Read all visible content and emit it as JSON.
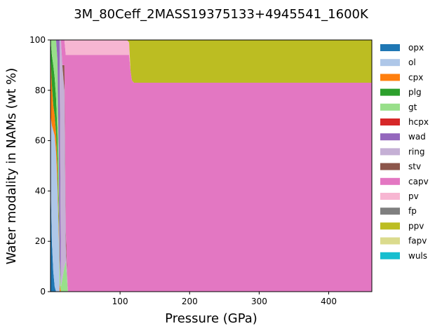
{
  "chart_data": {
    "type": "area",
    "title": "3M_80Ceff_2MASS19375133+4945541_1600K",
    "xlabel": "Pressure (GPa)",
    "ylabel": "Water modality in NAMs (wt %)",
    "xlim": [
      0,
      462
    ],
    "ylim": [
      0,
      100
    ],
    "xticks": [
      100,
      200,
      300,
      400
    ],
    "yticks": [
      0,
      20,
      40,
      60,
      80,
      100
    ],
    "legend_position": "outside-right",
    "x": [
      0,
      2,
      4,
      6,
      8,
      10,
      12,
      13,
      15,
      17,
      20,
      22,
      25,
      110,
      113,
      115,
      117,
      120,
      200,
      300,
      400,
      462
    ],
    "series": [
      {
        "name": "opx",
        "color": "#1f77b4",
        "values": [
          45,
          20,
          8,
          2,
          0,
          0,
          0,
          0,
          0,
          0,
          0,
          0,
          0,
          0,
          0,
          0,
          0,
          0,
          0,
          0,
          0,
          0
        ]
      },
      {
        "name": "ol",
        "color": "#aec7e8",
        "values": [
          25,
          46,
          56,
          60,
          55,
          42,
          20,
          0,
          0,
          0,
          0,
          0,
          0,
          0,
          0,
          0,
          0,
          0,
          0,
          0,
          0,
          0
        ]
      },
      {
        "name": "cpx",
        "color": "#ff7f0e",
        "values": [
          25,
          16,
          10,
          8,
          8,
          8,
          5,
          3,
          0,
          0,
          0,
          0,
          0,
          0,
          0,
          0,
          0,
          0,
          0,
          0,
          0,
          0
        ]
      },
      {
        "name": "plg",
        "color": "#2ca02c",
        "values": [
          5,
          12,
          16,
          15,
          14,
          12,
          6,
          0,
          0,
          0,
          0,
          0,
          0,
          0,
          0,
          0,
          0,
          0,
          0,
          0,
          0,
          0
        ]
      },
      {
        "name": "gt",
        "color": "#98df8a",
        "values": [
          0,
          6,
          10,
          15,
          23,
          30,
          22,
          10,
          2,
          5,
          10,
          12,
          0,
          0,
          0,
          0,
          0,
          0,
          0,
          0,
          0,
          0
        ]
      },
      {
        "name": "hcpx",
        "color": "#d62728",
        "values": [
          0,
          0,
          0,
          0,
          0,
          0,
          0,
          0,
          0,
          0,
          0,
          0,
          0,
          0,
          0,
          0,
          0,
          0,
          0,
          0,
          0,
          0
        ]
      },
      {
        "name": "wad",
        "color": "#9467bd",
        "values": [
          0,
          0,
          0,
          0,
          0,
          8,
          47,
          87,
          0,
          0,
          0,
          0,
          0,
          0,
          0,
          0,
          0,
          0,
          0,
          0,
          0,
          0
        ]
      },
      {
        "name": "ring",
        "color": "#c5b0d5",
        "values": [
          0,
          0,
          0,
          0,
          0,
          0,
          0,
          0,
          98,
          85,
          70,
          6,
          0,
          0,
          0,
          0,
          0,
          0,
          0,
          0,
          0,
          0
        ]
      },
      {
        "name": "stv",
        "color": "#8c564b",
        "values": [
          0,
          0,
          0,
          0,
          0,
          0,
          0,
          0,
          0,
          0,
          10,
          6,
          0,
          0,
          0,
          0,
          0,
          0,
          0,
          0,
          0,
          0
        ]
      },
      {
        "name": "capv",
        "color": "#e377c2",
        "values": [
          0,
          0,
          0,
          0,
          0,
          0,
          0,
          0,
          0,
          10,
          10,
          70,
          94,
          94,
          94,
          88,
          84,
          83,
          83,
          83,
          83,
          83
        ]
      },
      {
        "name": "pv",
        "color": "#f7b6d2",
        "values": [
          0,
          0,
          0,
          0,
          0,
          0,
          0,
          0,
          0,
          0,
          0,
          6,
          6,
          6,
          5,
          0,
          0,
          0,
          0,
          0,
          0,
          0
        ]
      },
      {
        "name": "fp",
        "color": "#7f7f7f",
        "values": [
          0,
          0,
          0,
          0,
          0,
          0,
          0,
          0,
          0,
          0,
          0,
          0,
          0,
          0,
          0,
          0,
          0,
          0,
          0,
          0,
          0,
          0
        ]
      },
      {
        "name": "ppv",
        "color": "#bcbd22",
        "values": [
          0,
          0,
          0,
          0,
          0,
          0,
          0,
          0,
          0,
          0,
          0,
          0,
          0,
          0,
          1,
          12,
          16,
          17,
          17,
          17,
          17,
          17
        ]
      },
      {
        "name": "fapv",
        "color": "#dbdb8d",
        "values": [
          0,
          0,
          0,
          0,
          0,
          0,
          0,
          0,
          0,
          0,
          0,
          0,
          0,
          0,
          0,
          0,
          0,
          0,
          0,
          0,
          0,
          0
        ]
      },
      {
        "name": "wuls",
        "color": "#17becf",
        "values": [
          0,
          0,
          0,
          0,
          0,
          0,
          0,
          0,
          0,
          0,
          0,
          0,
          0,
          0,
          0,
          0,
          0,
          0,
          0,
          0,
          0,
          0
        ]
      }
    ]
  }
}
